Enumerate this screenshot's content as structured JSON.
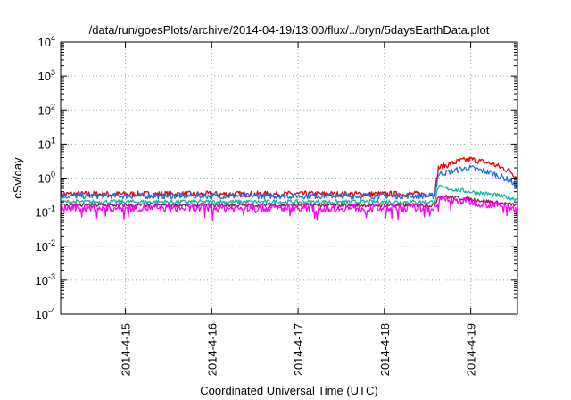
{
  "chart_data": {
    "type": "line",
    "title": "/data/run/goesPlots/archive/2014-04-19/13:00/flux/../bryn/5daysEarthData.plot",
    "xlabel": "Coordinated Universal Time (UTC)",
    "ylabel": "cSv/day",
    "yscale": "log",
    "ylim": [
      0.0001,
      10000
    ],
    "xlim": [
      "2014-04-14 06:00",
      "2014-04-19 13:00"
    ],
    "grid": true,
    "x_ticks": [
      "2014-4-15",
      "2014-4-16",
      "2014-4-17",
      "2014-4-18",
      "2014-4-19"
    ],
    "y_ticks": [
      {
        "base": "10",
        "exp": "-4",
        "value": 0.0001
      },
      {
        "base": "10",
        "exp": "-3",
        "value": 0.001
      },
      {
        "base": "10",
        "exp": "-2",
        "value": 0.01
      },
      {
        "base": "10",
        "exp": "-1",
        "value": 0.1
      },
      {
        "base": "10",
        "exp": "0",
        "value": 1
      },
      {
        "base": "10",
        "exp": "1",
        "value": 10
      },
      {
        "base": "10",
        "exp": "2",
        "value": 100
      },
      {
        "base": "10",
        "exp": "3",
        "value": 1000
      },
      {
        "base": "10",
        "exp": "4",
        "value": 10000
      }
    ],
    "series": [
      {
        "color": "#ee0000",
        "noise": 0.35,
        "points": [
          [
            "2014-04-14 06:00",
            0.34
          ],
          [
            "2014-04-15 00:00",
            0.34
          ],
          [
            "2014-04-16 00:00",
            0.34
          ],
          [
            "2014-04-17 00:00",
            0.34
          ],
          [
            "2014-04-18 00:00",
            0.34
          ],
          [
            "2014-04-18 14:00",
            0.34
          ],
          [
            "2014-04-18 15:00",
            2.0
          ],
          [
            "2014-04-18 21:00",
            3.2
          ],
          [
            "2014-04-19 00:00",
            3.6
          ],
          [
            "2014-04-19 06:00",
            2.6
          ],
          [
            "2014-04-19 11:00",
            1.6
          ],
          [
            "2014-04-19 13:00",
            1.0
          ]
        ]
      },
      {
        "color": "#1d6ff2",
        "noise": 0.35,
        "points": [
          [
            "2014-04-14 06:00",
            0.3
          ],
          [
            "2014-04-15 00:00",
            0.3
          ],
          [
            "2014-04-16 00:00",
            0.3
          ],
          [
            "2014-04-17 00:00",
            0.3
          ],
          [
            "2014-04-18 00:00",
            0.3
          ],
          [
            "2014-04-18 14:00",
            0.3
          ],
          [
            "2014-04-18 15:00",
            1.3
          ],
          [
            "2014-04-18 21:00",
            1.8
          ],
          [
            "2014-04-19 00:00",
            2.0
          ],
          [
            "2014-04-19 06:00",
            1.4
          ],
          [
            "2014-04-19 11:00",
            0.85
          ],
          [
            "2014-04-19 13:00",
            0.55
          ]
        ]
      },
      {
        "color": "#12b99a",
        "noise": 0.25,
        "points": [
          [
            "2014-04-14 06:00",
            0.2
          ],
          [
            "2014-04-15 00:00",
            0.2
          ],
          [
            "2014-04-16 00:00",
            0.2
          ],
          [
            "2014-04-17 00:00",
            0.2
          ],
          [
            "2014-04-18 00:00",
            0.2
          ],
          [
            "2014-04-18 14:00",
            0.2
          ],
          [
            "2014-04-18 15:00",
            0.55
          ],
          [
            "2014-04-18 20:00",
            0.45
          ],
          [
            "2014-04-19 00:00",
            0.4
          ],
          [
            "2014-04-19 06:00",
            0.33
          ],
          [
            "2014-04-19 13:00",
            0.24
          ]
        ]
      },
      {
        "color": "#8a1a5a",
        "noise": 0.22,
        "points": [
          [
            "2014-04-14 06:00",
            0.16
          ],
          [
            "2014-04-15 00:00",
            0.16
          ],
          [
            "2014-04-16 00:00",
            0.16
          ],
          [
            "2014-04-17 00:00",
            0.16
          ],
          [
            "2014-04-18 00:00",
            0.16
          ],
          [
            "2014-04-18 14:00",
            0.16
          ],
          [
            "2014-04-18 15:00",
            0.3
          ],
          [
            "2014-04-19 00:00",
            0.24
          ],
          [
            "2014-04-19 13:00",
            0.16
          ]
        ]
      },
      {
        "color": "#ff00ff",
        "noise": 0.45,
        "points": [
          [
            "2014-04-14 06:00",
            0.13
          ],
          [
            "2014-04-15 00:00",
            0.13
          ],
          [
            "2014-04-16 00:00",
            0.13
          ],
          [
            "2014-04-17 00:00",
            0.13
          ],
          [
            "2014-04-18 00:00",
            0.13
          ],
          [
            "2014-04-18 14:00",
            0.13
          ],
          [
            "2014-04-18 15:00",
            0.24
          ],
          [
            "2014-04-19 00:00",
            0.2
          ],
          [
            "2014-04-19 13:00",
            0.13
          ]
        ]
      }
    ]
  }
}
